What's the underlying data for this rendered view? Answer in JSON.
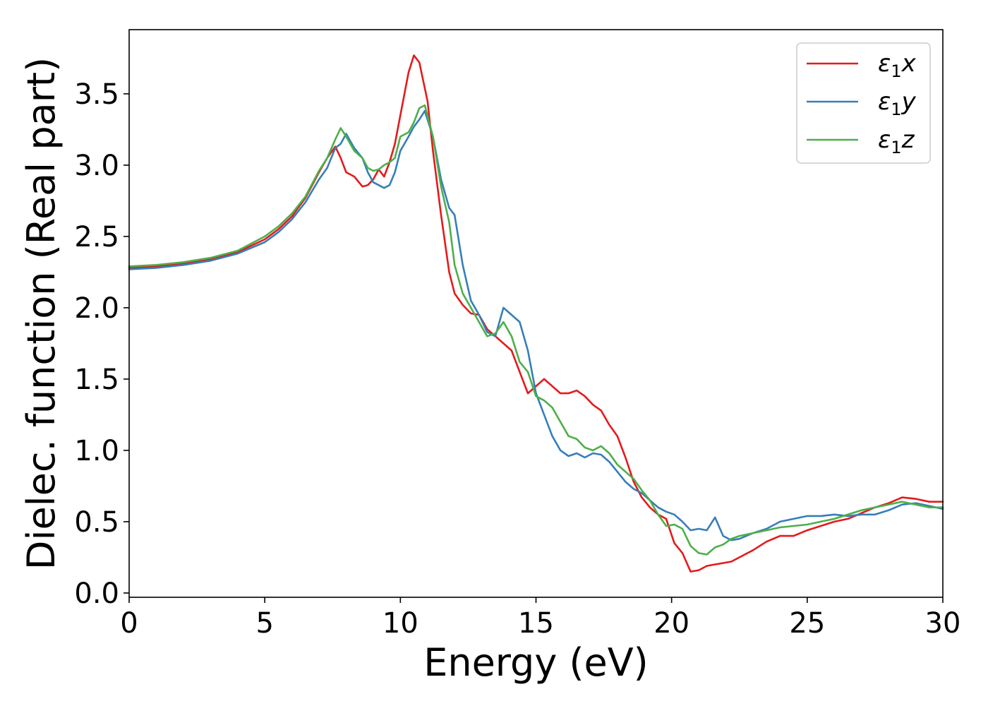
{
  "chart_data": {
    "type": "line",
    "title": "",
    "xlabel": "Energy (eV)",
    "ylabel": "Dielec. function (Real part)",
    "xlim": [
      0,
      30
    ],
    "ylim": [
      -0.03,
      3.95
    ],
    "xticks": [
      0,
      5,
      10,
      15,
      20,
      25,
      30
    ],
    "xtick_labels": [
      "0",
      "5",
      "10",
      "15",
      "20",
      "25",
      "30"
    ],
    "yticks": [
      0.0,
      0.5,
      1.0,
      1.5,
      2.0,
      2.5,
      3.0,
      3.5
    ],
    "ytick_labels": [
      "0.0",
      "0.5",
      "1.0",
      "1.5",
      "2.0",
      "2.5",
      "3.0",
      "3.5"
    ],
    "grid": false,
    "legend_position": "top-right",
    "series": [
      {
        "name": "ε₁x",
        "legend_base": "ε",
        "legend_sub": "1",
        "legend_suffix": "x",
        "color": "#e41a1c",
        "x": [
          0,
          1,
          2,
          3,
          4,
          5,
          5.5,
          6,
          6.5,
          7,
          7.3,
          7.6,
          7.8,
          8.0,
          8.3,
          8.6,
          8.8,
          9.0,
          9.2,
          9.4,
          9.6,
          9.8,
          10.0,
          10.3,
          10.5,
          10.7,
          11.0,
          11.2,
          11.5,
          11.8,
          12.0,
          12.3,
          12.6,
          12.9,
          13.2,
          13.5,
          13.8,
          14.1,
          14.4,
          14.7,
          15.0,
          15.3,
          15.6,
          15.9,
          16.2,
          16.5,
          16.8,
          17.1,
          17.4,
          17.7,
          18.0,
          18.3,
          18.6,
          18.9,
          19.2,
          19.5,
          19.8,
          20.1,
          20.4,
          20.7,
          21.0,
          21.3,
          21.6,
          21.9,
          22.2,
          22.5,
          23.0,
          23.5,
          24.0,
          24.5,
          25.0,
          25.5,
          26.0,
          26.5,
          27.0,
          27.5,
          28.0,
          28.5,
          29.0,
          29.5,
          30.0
        ],
        "y": [
          2.28,
          2.29,
          2.31,
          2.34,
          2.39,
          2.48,
          2.55,
          2.64,
          2.77,
          2.95,
          3.05,
          3.13,
          3.05,
          2.95,
          2.92,
          2.85,
          2.86,
          2.9,
          2.97,
          2.92,
          3.02,
          3.15,
          3.35,
          3.65,
          3.77,
          3.72,
          3.45,
          3.1,
          2.65,
          2.25,
          2.1,
          2.02,
          1.96,
          1.95,
          1.85,
          1.8,
          1.75,
          1.7,
          1.55,
          1.4,
          1.45,
          1.5,
          1.45,
          1.4,
          1.4,
          1.42,
          1.38,
          1.32,
          1.28,
          1.18,
          1.1,
          0.95,
          0.78,
          0.67,
          0.6,
          0.55,
          0.52,
          0.35,
          0.28,
          0.15,
          0.16,
          0.19,
          0.2,
          0.21,
          0.22,
          0.25,
          0.3,
          0.36,
          0.4,
          0.4,
          0.44,
          0.47,
          0.5,
          0.52,
          0.56,
          0.6,
          0.63,
          0.67,
          0.66,
          0.64,
          0.64
        ]
      },
      {
        "name": "ε₁y",
        "legend_base": "ε",
        "legend_sub": "1",
        "legend_suffix": "y",
        "color": "#377eb8",
        "x": [
          0,
          1,
          2,
          3,
          4,
          5,
          5.5,
          6,
          6.5,
          7,
          7.3,
          7.6,
          7.8,
          8.0,
          8.3,
          8.6,
          8.8,
          9.0,
          9.2,
          9.4,
          9.6,
          9.8,
          10.0,
          10.3,
          10.5,
          10.7,
          10.9,
          11.2,
          11.5,
          11.8,
          12.0,
          12.3,
          12.6,
          12.9,
          13.2,
          13.5,
          13.8,
          14.1,
          14.4,
          14.7,
          15.0,
          15.3,
          15.6,
          15.9,
          16.2,
          16.5,
          16.8,
          17.1,
          17.4,
          17.7,
          18.0,
          18.3,
          18.6,
          18.9,
          19.2,
          19.5,
          19.8,
          20.1,
          20.4,
          20.7,
          21.0,
          21.3,
          21.6,
          21.9,
          22.2,
          22.5,
          23.0,
          23.5,
          24.0,
          24.5,
          25.0,
          25.5,
          26.0,
          26.5,
          27.0,
          27.5,
          28.0,
          28.5,
          29.0,
          29.5,
          30.0
        ],
        "y": [
          2.27,
          2.28,
          2.3,
          2.33,
          2.38,
          2.46,
          2.53,
          2.62,
          2.74,
          2.9,
          2.98,
          3.12,
          3.15,
          3.22,
          3.12,
          3.05,
          2.95,
          2.88,
          2.86,
          2.84,
          2.86,
          2.95,
          3.1,
          3.2,
          3.27,
          3.32,
          3.38,
          3.2,
          2.9,
          2.7,
          2.65,
          2.3,
          2.05,
          1.95,
          1.83,
          1.8,
          2.0,
          1.95,
          1.9,
          1.7,
          1.4,
          1.25,
          1.1,
          1.0,
          0.96,
          0.98,
          0.95,
          0.98,
          0.97,
          0.92,
          0.85,
          0.78,
          0.73,
          0.7,
          0.65,
          0.6,
          0.57,
          0.55,
          0.5,
          0.44,
          0.45,
          0.44,
          0.53,
          0.4,
          0.37,
          0.38,
          0.42,
          0.45,
          0.5,
          0.52,
          0.54,
          0.54,
          0.55,
          0.54,
          0.55,
          0.55,
          0.58,
          0.62,
          0.63,
          0.61,
          0.59
        ]
      },
      {
        "name": "ε₁z",
        "legend_base": "ε",
        "legend_sub": "1",
        "legend_suffix": "z",
        "color": "#4daf4a",
        "x": [
          0,
          1,
          2,
          3,
          4,
          5,
          5.5,
          6,
          6.5,
          7,
          7.3,
          7.6,
          7.8,
          8.0,
          8.3,
          8.6,
          8.8,
          9.0,
          9.2,
          9.4,
          9.6,
          9.8,
          10.0,
          10.3,
          10.5,
          10.7,
          10.9,
          11.2,
          11.5,
          11.8,
          12.0,
          12.3,
          12.6,
          12.9,
          13.2,
          13.5,
          13.8,
          14.1,
          14.4,
          14.7,
          15.0,
          15.3,
          15.6,
          15.9,
          16.2,
          16.5,
          16.8,
          17.1,
          17.4,
          17.7,
          18.0,
          18.3,
          18.6,
          18.9,
          19.2,
          19.5,
          19.8,
          20.1,
          20.4,
          20.7,
          21.0,
          21.3,
          21.6,
          21.9,
          22.2,
          22.5,
          23.0,
          23.5,
          24.0,
          24.5,
          25.0,
          25.5,
          26.0,
          26.5,
          27.0,
          27.5,
          28.0,
          28.5,
          29.0,
          29.5,
          30.0
        ],
        "y": [
          2.29,
          2.3,
          2.32,
          2.35,
          2.4,
          2.5,
          2.57,
          2.66,
          2.78,
          2.96,
          3.05,
          3.18,
          3.26,
          3.2,
          3.1,
          3.05,
          2.98,
          2.96,
          2.97,
          3.0,
          3.02,
          3.05,
          3.2,
          3.23,
          3.3,
          3.4,
          3.42,
          3.2,
          2.85,
          2.6,
          2.3,
          2.1,
          2.0,
          1.9,
          1.8,
          1.82,
          1.9,
          1.8,
          1.62,
          1.55,
          1.38,
          1.35,
          1.3,
          1.2,
          1.1,
          1.08,
          1.02,
          1.0,
          1.03,
          0.98,
          0.9,
          0.85,
          0.8,
          0.72,
          0.65,
          0.55,
          0.47,
          0.48,
          0.45,
          0.33,
          0.28,
          0.27,
          0.32,
          0.34,
          0.38,
          0.4,
          0.42,
          0.44,
          0.46,
          0.47,
          0.48,
          0.5,
          0.52,
          0.55,
          0.58,
          0.6,
          0.62,
          0.64,
          0.62,
          0.6,
          0.6
        ]
      }
    ]
  }
}
